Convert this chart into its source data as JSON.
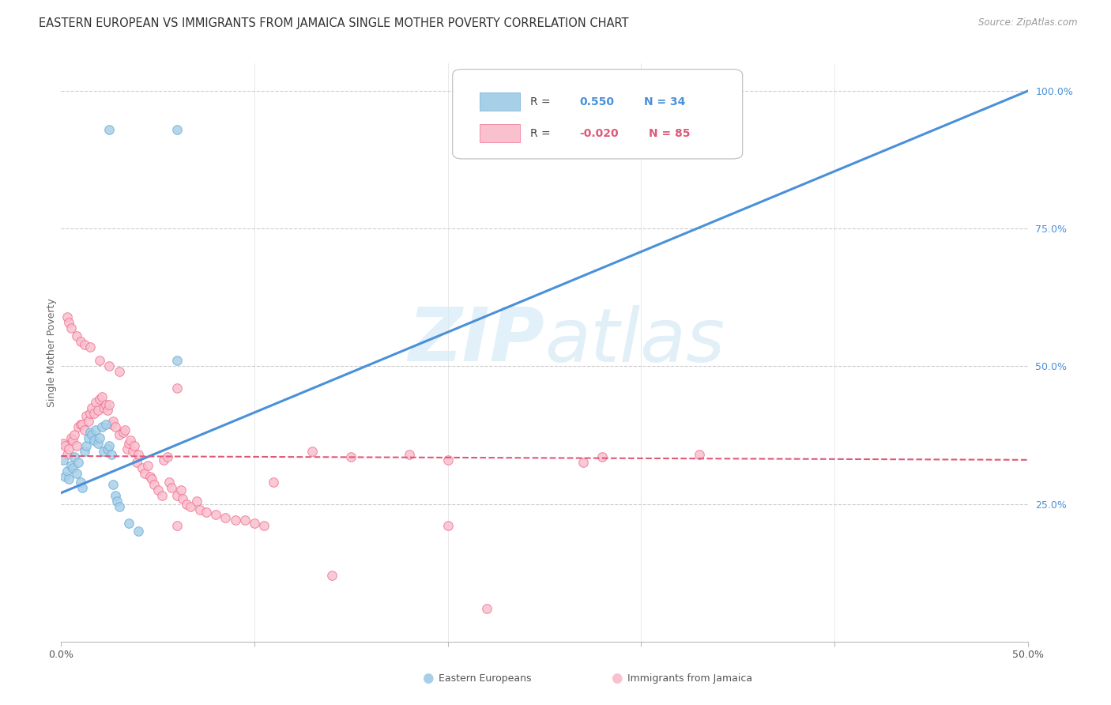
{
  "title": "EASTERN EUROPEAN VS IMMIGRANTS FROM JAMAICA SINGLE MOTHER POVERTY CORRELATION CHART",
  "source": "Source: ZipAtlas.com",
  "ylabel": "Single Mother Poverty",
  "legend_blue_label": "Eastern Europeans",
  "legend_pink_label": "Immigrants from Jamaica",
  "watermark_zip": "ZIP",
  "watermark_atlas": "atlas",
  "xlim": [
    0.0,
    0.5
  ],
  "ylim": [
    0.0,
    1.05
  ],
  "blue_color": "#a8cfe8",
  "blue_edge_color": "#6aaed6",
  "pink_color": "#f9c0ce",
  "pink_edge_color": "#f07090",
  "blue_line_color": "#4a90d9",
  "pink_line_color": "#e05878",
  "blue_line_x": [
    0.0,
    0.5
  ],
  "blue_line_y": [
    0.27,
    1.0
  ],
  "pink_line_x": [
    0.0,
    0.5
  ],
  "pink_line_y": [
    0.337,
    0.33
  ],
  "blue_scatter": [
    [
      0.001,
      0.33
    ],
    [
      0.002,
      0.3
    ],
    [
      0.003,
      0.31
    ],
    [
      0.004,
      0.295
    ],
    [
      0.005,
      0.32
    ],
    [
      0.006,
      0.315
    ],
    [
      0.007,
      0.335
    ],
    [
      0.008,
      0.305
    ],
    [
      0.009,
      0.325
    ],
    [
      0.01,
      0.29
    ],
    [
      0.011,
      0.28
    ],
    [
      0.012,
      0.345
    ],
    [
      0.013,
      0.355
    ],
    [
      0.014,
      0.37
    ],
    [
      0.015,
      0.38
    ],
    [
      0.016,
      0.375
    ],
    [
      0.017,
      0.365
    ],
    [
      0.018,
      0.385
    ],
    [
      0.019,
      0.36
    ],
    [
      0.02,
      0.37
    ],
    [
      0.021,
      0.39
    ],
    [
      0.022,
      0.345
    ],
    [
      0.023,
      0.395
    ],
    [
      0.024,
      0.35
    ],
    [
      0.025,
      0.355
    ],
    [
      0.026,
      0.34
    ],
    [
      0.027,
      0.285
    ],
    [
      0.028,
      0.265
    ],
    [
      0.029,
      0.255
    ],
    [
      0.03,
      0.245
    ],
    [
      0.035,
      0.215
    ],
    [
      0.04,
      0.2
    ],
    [
      0.06,
      0.51
    ],
    [
      0.025,
      0.93
    ],
    [
      0.06,
      0.93
    ]
  ],
  "pink_scatter": [
    [
      0.001,
      0.36
    ],
    [
      0.002,
      0.355
    ],
    [
      0.003,
      0.34
    ],
    [
      0.004,
      0.35
    ],
    [
      0.005,
      0.37
    ],
    [
      0.006,
      0.365
    ],
    [
      0.007,
      0.375
    ],
    [
      0.008,
      0.355
    ],
    [
      0.009,
      0.39
    ],
    [
      0.01,
      0.395
    ],
    [
      0.011,
      0.395
    ],
    [
      0.012,
      0.385
    ],
    [
      0.013,
      0.41
    ],
    [
      0.014,
      0.4
    ],
    [
      0.015,
      0.415
    ],
    [
      0.016,
      0.425
    ],
    [
      0.017,
      0.415
    ],
    [
      0.018,
      0.435
    ],
    [
      0.019,
      0.42
    ],
    [
      0.02,
      0.44
    ],
    [
      0.021,
      0.445
    ],
    [
      0.022,
      0.425
    ],
    [
      0.023,
      0.43
    ],
    [
      0.024,
      0.42
    ],
    [
      0.025,
      0.43
    ],
    [
      0.003,
      0.59
    ],
    [
      0.004,
      0.58
    ],
    [
      0.005,
      0.57
    ],
    [
      0.008,
      0.555
    ],
    [
      0.01,
      0.545
    ],
    [
      0.012,
      0.54
    ],
    [
      0.015,
      0.535
    ],
    [
      0.02,
      0.51
    ],
    [
      0.025,
      0.5
    ],
    [
      0.03,
      0.49
    ],
    [
      0.026,
      0.395
    ],
    [
      0.027,
      0.4
    ],
    [
      0.028,
      0.39
    ],
    [
      0.03,
      0.375
    ],
    [
      0.032,
      0.38
    ],
    [
      0.033,
      0.385
    ],
    [
      0.034,
      0.35
    ],
    [
      0.035,
      0.36
    ],
    [
      0.036,
      0.365
    ],
    [
      0.037,
      0.345
    ],
    [
      0.038,
      0.355
    ],
    [
      0.039,
      0.325
    ],
    [
      0.04,
      0.34
    ],
    [
      0.042,
      0.315
    ],
    [
      0.043,
      0.305
    ],
    [
      0.045,
      0.32
    ],
    [
      0.046,
      0.3
    ],
    [
      0.047,
      0.295
    ],
    [
      0.048,
      0.285
    ],
    [
      0.05,
      0.275
    ],
    [
      0.052,
      0.265
    ],
    [
      0.053,
      0.33
    ],
    [
      0.055,
      0.335
    ],
    [
      0.056,
      0.29
    ],
    [
      0.057,
      0.28
    ],
    [
      0.06,
      0.265
    ],
    [
      0.062,
      0.275
    ],
    [
      0.063,
      0.26
    ],
    [
      0.065,
      0.25
    ],
    [
      0.067,
      0.245
    ],
    [
      0.07,
      0.255
    ],
    [
      0.072,
      0.24
    ],
    [
      0.075,
      0.235
    ],
    [
      0.08,
      0.23
    ],
    [
      0.085,
      0.225
    ],
    [
      0.09,
      0.22
    ],
    [
      0.095,
      0.22
    ],
    [
      0.1,
      0.215
    ],
    [
      0.105,
      0.21
    ],
    [
      0.11,
      0.29
    ],
    [
      0.13,
      0.345
    ],
    [
      0.2,
      0.33
    ],
    [
      0.27,
      0.325
    ],
    [
      0.33,
      0.34
    ],
    [
      0.2,
      0.21
    ],
    [
      0.14,
      0.12
    ],
    [
      0.22,
      0.06
    ],
    [
      0.15,
      0.335
    ],
    [
      0.18,
      0.34
    ],
    [
      0.28,
      0.335
    ],
    [
      0.06,
      0.46
    ],
    [
      0.06,
      0.21
    ]
  ],
  "background_color": "#ffffff",
  "grid_color": "#cccccc",
  "title_fontsize": 10.5,
  "source_fontsize": 8.5,
  "tick_fontsize": 9
}
